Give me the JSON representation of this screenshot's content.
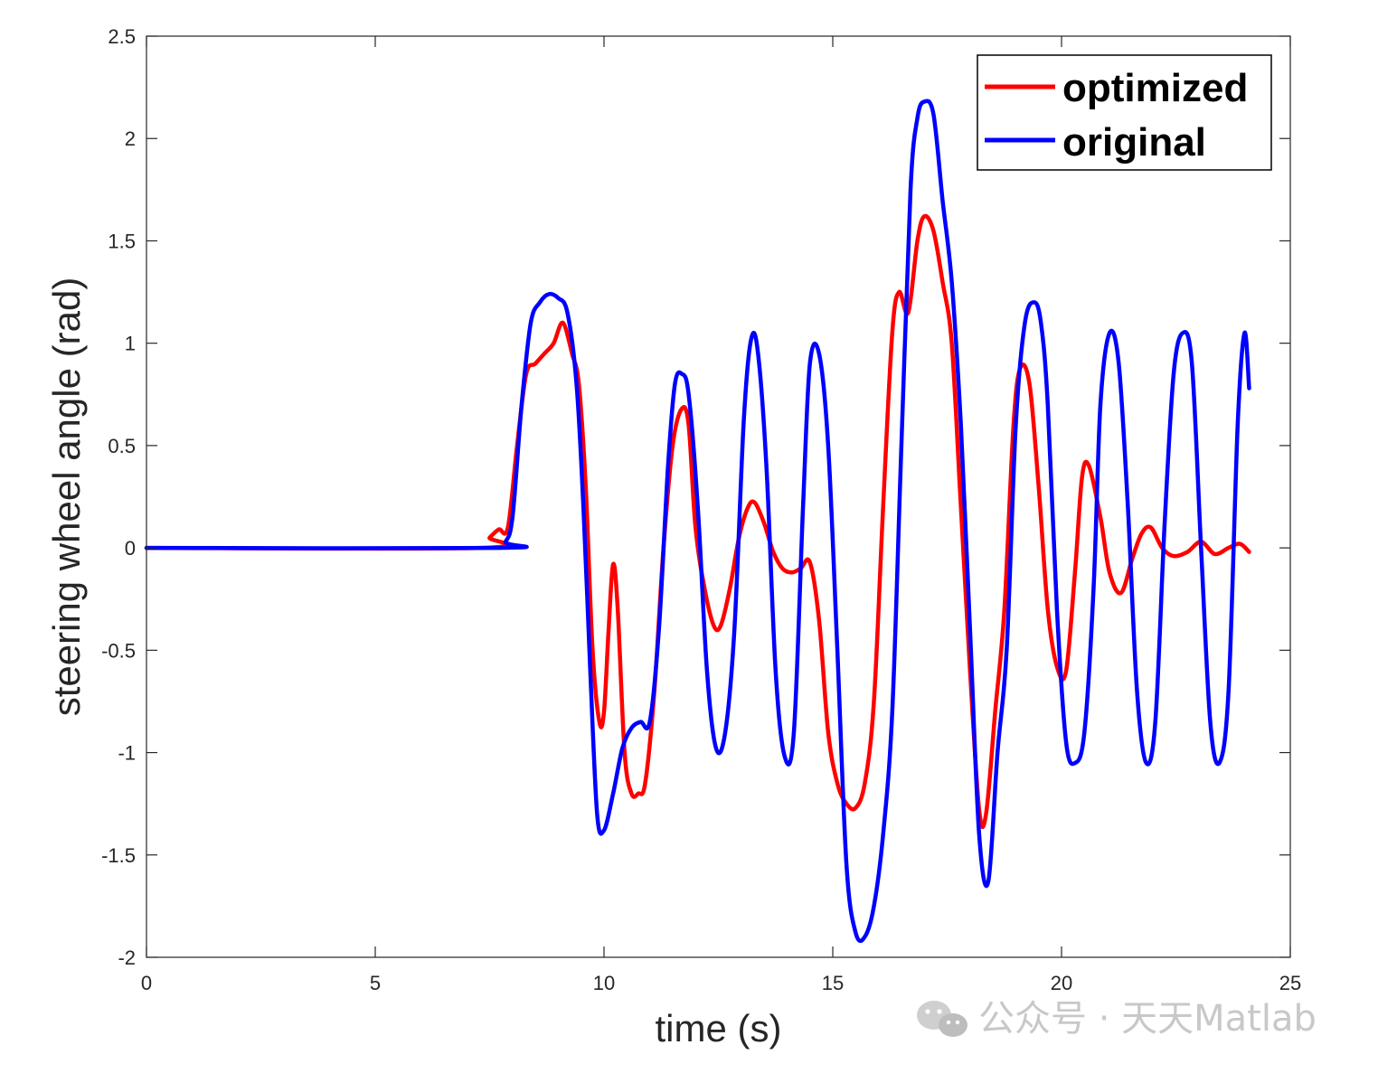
{
  "chart_data": {
    "type": "line",
    "title": "",
    "xlabel": "time (s)",
    "ylabel": "steering wheel angle (rad)",
    "xlim": [
      0,
      25
    ],
    "ylim": [
      -2,
      2.5
    ],
    "xticks": [
      0,
      5,
      10,
      15,
      20,
      25
    ],
    "xtick_labels": [
      "0",
      "5",
      "10",
      "15",
      "20",
      "25"
    ],
    "yticks": [
      -2,
      -1.5,
      -1,
      -0.5,
      0,
      0.5,
      1,
      1.5,
      2,
      2.5
    ],
    "ytick_labels": [
      "-2",
      "-1.5",
      "-1",
      "-0.5",
      "0",
      "0.5",
      "1",
      "1.5",
      "2",
      "2.5"
    ],
    "grid": false,
    "box": true,
    "legend_position": "top-right",
    "series": [
      {
        "name": "optimized",
        "color": "#ff0000",
        "x": [
          0,
          7.3,
          7.5,
          7.7,
          7.9,
          8.1,
          8.3,
          8.5,
          8.7,
          8.9,
          9.1,
          9.3,
          9.45,
          9.6,
          9.75,
          9.9,
          10.0,
          10.1,
          10.2,
          10.3,
          10.45,
          10.6,
          10.75,
          10.9,
          11.1,
          11.3,
          11.5,
          11.7,
          11.85,
          12.0,
          12.2,
          12.4,
          12.55,
          12.75,
          12.95,
          13.15,
          13.3,
          13.5,
          13.7,
          13.9,
          14.1,
          14.3,
          14.5,
          14.7,
          14.9,
          15.1,
          15.3,
          15.5,
          15.7,
          15.9,
          16.1,
          16.3,
          16.45,
          16.65,
          16.85,
          17.0,
          17.2,
          17.4,
          17.6,
          17.8,
          18.0,
          18.2,
          18.35,
          18.55,
          18.75,
          18.95,
          19.1,
          19.3,
          19.5,
          19.7,
          19.9,
          20.1,
          20.3,
          20.45,
          20.6,
          20.85,
          21.05,
          21.3,
          21.55,
          21.75,
          21.95,
          22.2,
          22.45,
          22.75,
          23.05,
          23.35,
          23.65,
          23.9,
          24.1
        ],
        "y": [
          0,
          0,
          0.05,
          0.09,
          0.1,
          0.5,
          0.85,
          0.9,
          0.95,
          1.0,
          1.1,
          0.95,
          0.8,
          0.3,
          -0.5,
          -0.85,
          -0.8,
          -0.4,
          -0.08,
          -0.3,
          -1.0,
          -1.2,
          -1.2,
          -1.15,
          -0.7,
          0.0,
          0.5,
          0.68,
          0.6,
          0.1,
          -0.2,
          -0.38,
          -0.38,
          -0.2,
          0.05,
          0.2,
          0.22,
          0.12,
          -0.02,
          -0.1,
          -0.12,
          -0.1,
          -0.07,
          -0.35,
          -0.9,
          -1.15,
          -1.25,
          -1.27,
          -1.15,
          -0.75,
          0.2,
          1.05,
          1.25,
          1.15,
          1.5,
          1.62,
          1.55,
          1.3,
          1.0,
          0.2,
          -0.6,
          -1.28,
          -1.3,
          -0.8,
          -0.3,
          0.6,
          0.88,
          0.8,
          0.3,
          -0.3,
          -0.58,
          -0.6,
          -0.1,
          0.35,
          0.4,
          0.15,
          -0.12,
          -0.22,
          -0.05,
          0.07,
          0.1,
          0.0,
          -0.04,
          -0.02,
          0.03,
          -0.03,
          0.0,
          0.02,
          -0.02
        ]
      },
      {
        "name": "original",
        "color": "#0000ff",
        "x": [
          0,
          7.7,
          7.85,
          8.0,
          8.2,
          8.4,
          8.6,
          8.8,
          9.0,
          9.2,
          9.4,
          9.55,
          9.7,
          9.85,
          10.0,
          10.2,
          10.4,
          10.6,
          10.8,
          11.0,
          11.2,
          11.4,
          11.55,
          11.7,
          11.85,
          12.05,
          12.25,
          12.45,
          12.65,
          12.85,
          13.05,
          13.2,
          13.35,
          13.55,
          13.75,
          13.95,
          14.15,
          14.35,
          14.5,
          14.7,
          14.9,
          15.1,
          15.3,
          15.5,
          15.7,
          15.9,
          16.1,
          16.3,
          16.5,
          16.7,
          16.85,
          17.0,
          17.2,
          17.4,
          17.6,
          17.8,
          18.0,
          18.2,
          18.4,
          18.6,
          18.8,
          19.0,
          19.2,
          19.4,
          19.55,
          19.7,
          19.9,
          20.1,
          20.3,
          20.5,
          20.7,
          20.85,
          21.05,
          21.25,
          21.45,
          21.65,
          21.85,
          22.05,
          22.25,
          22.45,
          22.65,
          22.85,
          23.05,
          23.25,
          23.45,
          23.65,
          23.85,
          24.0,
          24.1
        ],
        "y": [
          0,
          0,
          0.03,
          0.15,
          0.7,
          1.1,
          1.2,
          1.24,
          1.22,
          1.15,
          0.8,
          0.2,
          -0.6,
          -1.3,
          -1.38,
          -1.2,
          -0.98,
          -0.88,
          -0.85,
          -0.85,
          -0.4,
          0.4,
          0.8,
          0.85,
          0.75,
          0.2,
          -0.6,
          -0.98,
          -0.9,
          -0.4,
          0.6,
          1.0,
          0.98,
          0.4,
          -0.6,
          -1.02,
          -0.9,
          0.2,
          0.9,
          0.95,
          0.5,
          -0.5,
          -1.55,
          -1.88,
          -1.9,
          -1.75,
          -1.4,
          -0.8,
          0.5,
          1.75,
          2.1,
          2.18,
          2.12,
          1.7,
          1.3,
          0.6,
          -0.4,
          -1.4,
          -1.63,
          -1.0,
          -0.5,
          0.6,
          1.1,
          1.2,
          1.1,
          0.7,
          -0.3,
          -0.95,
          -1.05,
          -0.9,
          -0.2,
          0.7,
          1.05,
          0.9,
          0.2,
          -0.7,
          -1.05,
          -0.85,
          0.1,
          0.85,
          1.05,
          0.9,
          0.0,
          -0.85,
          -1.05,
          -0.7,
          0.6,
          1.05,
          0.78
        ]
      }
    ]
  },
  "watermark": {
    "text": "公众号 · 天天Matlab",
    "icon": "wechat-icon"
  }
}
